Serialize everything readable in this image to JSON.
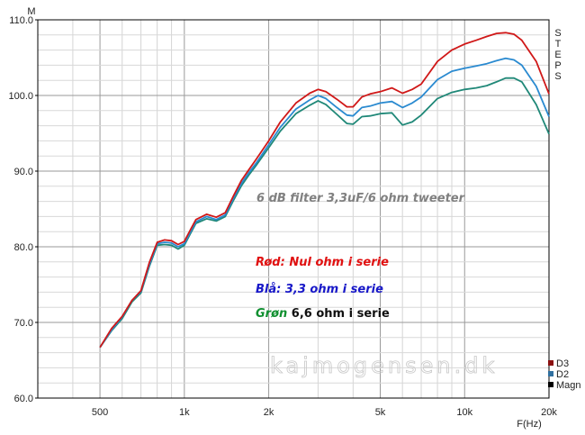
{
  "chart_data": {
    "type": "line",
    "title": "6 dB filter 3,3uF/6 ohm tweeter",
    "ylabel": "",
    "xlabel": "F(Hz)",
    "corner_label": "M",
    "side_label": "STEPS",
    "x_scale": "log",
    "xlim": [
      300,
      20000
    ],
    "ylim": [
      60,
      110
    ],
    "grid": true,
    "x_ticks": [
      {
        "v": 500,
        "label": "500"
      },
      {
        "v": 1000,
        "label": "1k"
      },
      {
        "v": 2000,
        "label": "2k"
      },
      {
        "v": 5000,
        "label": "5k"
      },
      {
        "v": 10000,
        "label": "10k"
      },
      {
        "v": 20000,
        "label": "20k"
      }
    ],
    "y_ticks": [
      {
        "v": 60,
        "label": "60.0"
      },
      {
        "v": 70,
        "label": "70.0"
      },
      {
        "v": 80,
        "label": "80.0"
      },
      {
        "v": 90,
        "label": "90.0"
      },
      {
        "v": 100,
        "label": "100.0"
      },
      {
        "v": 110,
        "label": "110.0"
      }
    ],
    "x": [
      500,
      550,
      600,
      650,
      700,
      750,
      800,
      850,
      900,
      950,
      1000,
      1050,
      1100,
      1200,
      1300,
      1400,
      1500,
      1600,
      1700,
      1800,
      2000,
      2200,
      2500,
      2800,
      3000,
      3200,
      3500,
      3800,
      4000,
      4300,
      4600,
      5000,
      5500,
      6000,
      6500,
      7000,
      8000,
      9000,
      10000,
      11000,
      12000,
      13000,
      14000,
      15000,
      16000,
      18000,
      20000
    ],
    "series": [
      {
        "name": "Rød",
        "color": "#d01818",
        "values": [
          66.7,
          69.2,
          70.8,
          72.9,
          74.2,
          77.9,
          80.6,
          80.9,
          80.8,
          80.3,
          80.7,
          82.2,
          83.6,
          84.3,
          83.9,
          84.5,
          86.8,
          88.8,
          90.2,
          91.5,
          94.0,
          96.5,
          99.0,
          100.3,
          100.8,
          100.5,
          99.5,
          98.5,
          98.5,
          99.8,
          100.2,
          100.5,
          101.0,
          100.3,
          100.8,
          101.5,
          104.5,
          106.0,
          106.8,
          107.3,
          107.8,
          108.2,
          108.3,
          108.1,
          107.3,
          104.5,
          100.2
        ]
      },
      {
        "name": "Blå",
        "color": "#2a8ad0",
        "values": [
          66.7,
          69.0,
          70.7,
          72.9,
          74.1,
          77.6,
          80.4,
          80.6,
          80.5,
          80.0,
          80.4,
          81.9,
          83.3,
          84.0,
          83.6,
          84.2,
          86.5,
          88.4,
          89.8,
          91.0,
          93.5,
          95.8,
          98.2,
          99.4,
          100.0,
          99.6,
          98.4,
          97.4,
          97.3,
          98.4,
          98.6,
          99.0,
          99.2,
          98.4,
          99.0,
          99.8,
          102.1,
          103.2,
          103.6,
          103.9,
          104.2,
          104.6,
          104.9,
          104.7,
          104.0,
          101.2,
          97.2
        ]
      },
      {
        "name": "Grøn",
        "color": "#208878",
        "values": [
          66.7,
          68.9,
          70.5,
          72.7,
          73.9,
          77.4,
          80.2,
          80.3,
          80.2,
          79.7,
          80.2,
          81.7,
          83.1,
          83.7,
          83.4,
          84.0,
          86.2,
          88.1,
          89.5,
          90.7,
          93.1,
          95.3,
          97.6,
          98.7,
          99.3,
          98.8,
          97.5,
          96.3,
          96.2,
          97.2,
          97.3,
          97.6,
          97.7,
          96.1,
          96.5,
          97.4,
          99.6,
          100.4,
          100.8,
          101.0,
          101.3,
          101.8,
          102.3,
          102.3,
          101.8,
          98.8,
          94.9
        ]
      }
    ],
    "annotations": [
      {
        "id": "title",
        "text": "6 dB filter 3,3uF/6 ohm tweeter",
        "color": "#808080"
      },
      {
        "id": "red",
        "text": "Rød: Nul ohm i serie",
        "color": "#e01010"
      },
      {
        "id": "blue",
        "text": "Blå: 3,3 ohm i serie",
        "color": "#1818c8"
      },
      {
        "id": "green_word",
        "text": "Grøn",
        "color": "#109030"
      },
      {
        "id": "green_rest",
        "text": " 6,6 ohm i serie",
        "color": "#101010"
      }
    ],
    "watermark": "kajmogensen.dk",
    "legend_position": "bottom-right",
    "legend": [
      {
        "label": "D3",
        "color": "#8b1010"
      },
      {
        "label": "D2",
        "color": "#3070a0"
      },
      {
        "label": "Magn",
        "color": "#000000"
      }
    ]
  }
}
